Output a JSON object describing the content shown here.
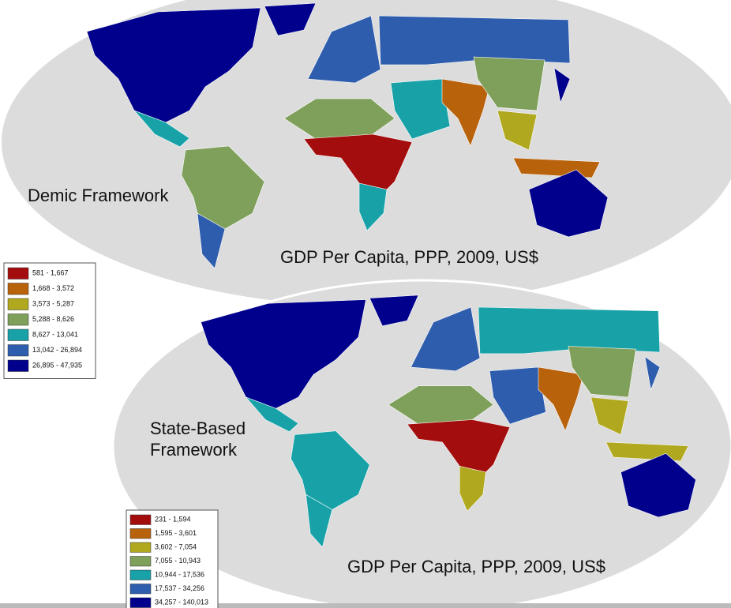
{
  "maps": [
    {
      "label": [
        "Demic Framework"
      ],
      "caption": "GDP Per Capita, PPP, 2009, US$",
      "legend": [
        {
          "range": "581 - 1,667",
          "color": "#a30d0d"
        },
        {
          "range": "1,668 - 3,572",
          "color": "#b8620c"
        },
        {
          "range": "3,573 - 5,287",
          "color": "#b0a81e"
        },
        {
          "range": "5,288 - 8,626",
          "color": "#7ea05a"
        },
        {
          "range": "8,627 - 13,041",
          "color": "#18a2a8"
        },
        {
          "range": "13,042 - 26,894",
          "color": "#2f5dad"
        },
        {
          "range": "26,895 - 47,935",
          "color": "#00008c"
        }
      ]
    },
    {
      "label": [
        "State-Based",
        "Framework"
      ],
      "caption": "GDP Per Capita, PPP, 2009, US$",
      "legend": [
        {
          "range": "231 - 1,594",
          "color": "#a30d0d"
        },
        {
          "range": "1,595 - 3,601",
          "color": "#b8620c"
        },
        {
          "range": "3,602 - 7,054",
          "color": "#b0a81e"
        },
        {
          "range": "7,055 - 10,943",
          "color": "#7ea05a"
        },
        {
          "range": "10,944 - 17,536",
          "color": "#18a2a8"
        },
        {
          "range": "17,537 - 34,256",
          "color": "#2f5dad"
        },
        {
          "range": "34,257 - 140,013",
          "color": "#00008c"
        }
      ]
    }
  ]
}
